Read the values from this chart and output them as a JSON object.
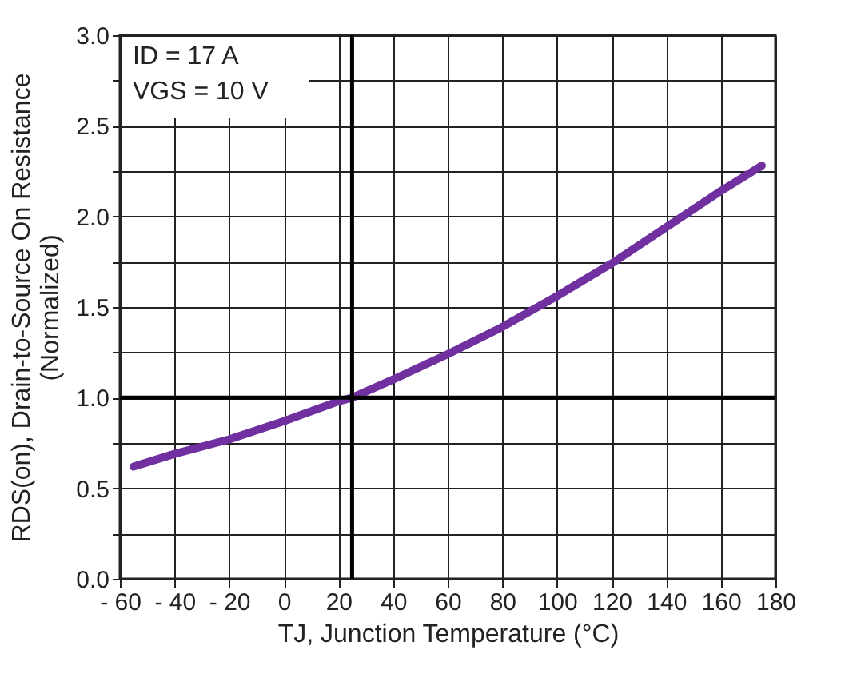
{
  "chart_data": {
    "type": "line",
    "xlabel": "TJ, Junction Temperature (°C)",
    "ylabel": [
      "RDS(on), Drain-to-Source On Resistance",
      "(Normalized)"
    ],
    "annotations": [
      "ID = 17 A",
      "VGS = 10 V"
    ],
    "series": [
      {
        "color": "#7030a0",
        "x": [
          -55,
          -40,
          -20,
          0,
          20,
          25,
          40,
          60,
          80,
          100,
          120,
          140,
          160,
          175
        ],
        "values": [
          0.62,
          0.69,
          0.77,
          0.87,
          0.98,
          1.0,
          1.1,
          1.24,
          1.39,
          1.56,
          1.74,
          1.94,
          2.14,
          2.28
        ]
      }
    ],
    "xlim": [
      -60,
      180
    ],
    "xticks": [
      {
        "value": -60,
        "label": "- 60"
      },
      {
        "value": -40,
        "label": "- 40"
      },
      {
        "value": -20,
        "label": "- 20"
      },
      0,
      20,
      40,
      60,
      80,
      100,
      120,
      140,
      160,
      180
    ],
    "ylim": [
      0,
      3
    ],
    "yticks": [
      {
        "value": 0,
        "label": "0.0"
      },
      {
        "value": 0.25,
        "label": null
      },
      0.5,
      {
        "value": 0.75,
        "label": null
      },
      {
        "value": 1,
        "label": "1.0"
      },
      {
        "value": 1.25,
        "label": null
      },
      1.5,
      {
        "value": 1.75,
        "label": null
      },
      {
        "value": 2,
        "label": "2.0"
      },
      {
        "value": 2.25,
        "label": null
      },
      2.5,
      {
        "value": 2.75,
        "label": null
      },
      {
        "value": 3,
        "label": "3.0"
      }
    ],
    "ref_lines": [
      {
        "axis": "x",
        "value": 25,
        "color": "#000000"
      },
      {
        "axis": "y",
        "value": 1,
        "color": "#000000"
      }
    ],
    "grid": true,
    "line_style": "solid",
    "marker": "none"
  }
}
